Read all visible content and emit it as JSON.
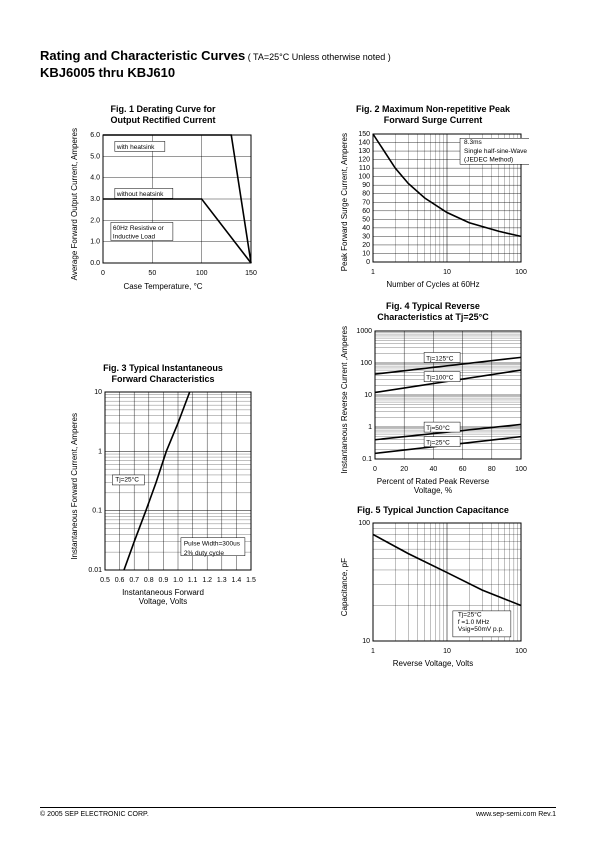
{
  "header": {
    "title": "Rating and Characteristic Curves",
    "condition": " ( TA=25°C Unless otherwise noted )",
    "subtitle": "KBJ6005 thru KBJ610"
  },
  "footer": {
    "left": "© 2005  SEP ELECTRONIC CORP.",
    "right": "www.sep-semi.com   Rev.1"
  },
  "fig1": {
    "title_l1": "Fig. 1 Derating Curve for",
    "title_l2": "Output Rectified Current",
    "xlabel": "Case Temperature, °C",
    "ylabel": "Average Forward Output\nCurrent, Amperes",
    "xlim": [
      0,
      150
    ],
    "xtick_step": 50,
    "ylim": [
      0,
      6
    ],
    "ytick_step": 1,
    "annot1": "with heatsink",
    "annot2": "without heatsink",
    "annot3_l1": "60Hz Resistive or",
    "annot3_l2": "Inductive Load",
    "curve1": [
      [
        0,
        6
      ],
      [
        130,
        6
      ],
      [
        150,
        0
      ]
    ],
    "curve2": [
      [
        0,
        3
      ],
      [
        100,
        3
      ],
      [
        150,
        0
      ]
    ]
  },
  "fig2": {
    "title_l1": "Fig. 2 Maximum Non-repetitive Peak",
    "title_l2": "Forward Surge Current",
    "xlabel": "Number of Cycles at 60Hz",
    "ylabel": "Peak Forward Surge Current,\nAmperes",
    "xlim_log": [
      1,
      100
    ],
    "xticks_log": [
      1,
      10,
      100
    ],
    "ylim": [
      0,
      150
    ],
    "ytick_step": 10,
    "annot_l1": "8.3ms",
    "annot_l2": "Single half-sine-Wave",
    "annot_l3": "(JEDEC Method)",
    "curve": [
      [
        1,
        150
      ],
      [
        2,
        110
      ],
      [
        3,
        92
      ],
      [
        5,
        75
      ],
      [
        10,
        58
      ],
      [
        20,
        46
      ],
      [
        50,
        36
      ],
      [
        100,
        30
      ]
    ]
  },
  "fig3": {
    "title_l1": "Fig. 3 Typical Instantaneous",
    "title_l2": "Forward Characteristics",
    "xlabel": "Instantaneous Forward\nVoltage, Volts",
    "ylabel": "Instantaneous Forward Current,\nAmperes",
    "xlim": [
      0.5,
      1.5
    ],
    "xtick_step": 0.1,
    "ylim_log": [
      0.01,
      10
    ],
    "yticks_log": [
      0.01,
      0.1,
      1,
      10
    ],
    "annot1": "Tj=25°C",
    "annot2_l1": "Pulse Width=300us",
    "annot2_l2": "2% duty cycle",
    "curve": [
      [
        0.63,
        0.01
      ],
      [
        0.7,
        0.03
      ],
      [
        0.78,
        0.1
      ],
      [
        0.85,
        0.3
      ],
      [
        0.92,
        1
      ],
      [
        1.0,
        3
      ],
      [
        1.08,
        10
      ]
    ]
  },
  "fig4": {
    "title_l1": "Fig. 4 Typical Reverse",
    "title_l2": "Characteristics at Tj=25°C",
    "xlabel": "Percent of Rated Peak Reverse\nVoltage, %",
    "ylabel": "Instantaneous Reverse\nCurrent ,Amperes",
    "xlim": [
      0,
      100
    ],
    "xtick_step": 20,
    "ylim_log": [
      0.1,
      1000
    ],
    "yticks_log": [
      0.1,
      1,
      10,
      100,
      1000
    ],
    "annot1": "Tj=125°C",
    "annot2": "Tj=100°C",
    "annot3": "Tj=50°C",
    "annot4": "Tj=25°C",
    "curve1": [
      [
        0,
        45
      ],
      [
        100,
        150
      ]
    ],
    "curve2": [
      [
        0,
        12
      ],
      [
        100,
        60
      ]
    ],
    "curve3": [
      [
        0,
        0.4
      ],
      [
        100,
        1.2
      ]
    ],
    "curve4": [
      [
        0,
        0.15
      ],
      [
        100,
        0.5
      ]
    ]
  },
  "fig5": {
    "title": "Fig. 5  Typical Junction Capacitance",
    "xlabel": "Reverse Voltage, Volts",
    "ylabel": "Capacitance,  pF",
    "xlim_log": [
      1,
      100
    ],
    "xticks_log": [
      1,
      10,
      100
    ],
    "ylim_log": [
      10,
      100
    ],
    "yticks_log": [
      10,
      100
    ],
    "annot_l1": "Tj=25°C",
    "annot_l2": "f =1.0 MHz",
    "annot_l3": "Vsig=50mV p.p.",
    "curve": [
      [
        1,
        80
      ],
      [
        3,
        55
      ],
      [
        10,
        38
      ],
      [
        30,
        27
      ],
      [
        100,
        20
      ]
    ]
  },
  "colors": {
    "line": "#000000",
    "bg": "#ffffff"
  }
}
